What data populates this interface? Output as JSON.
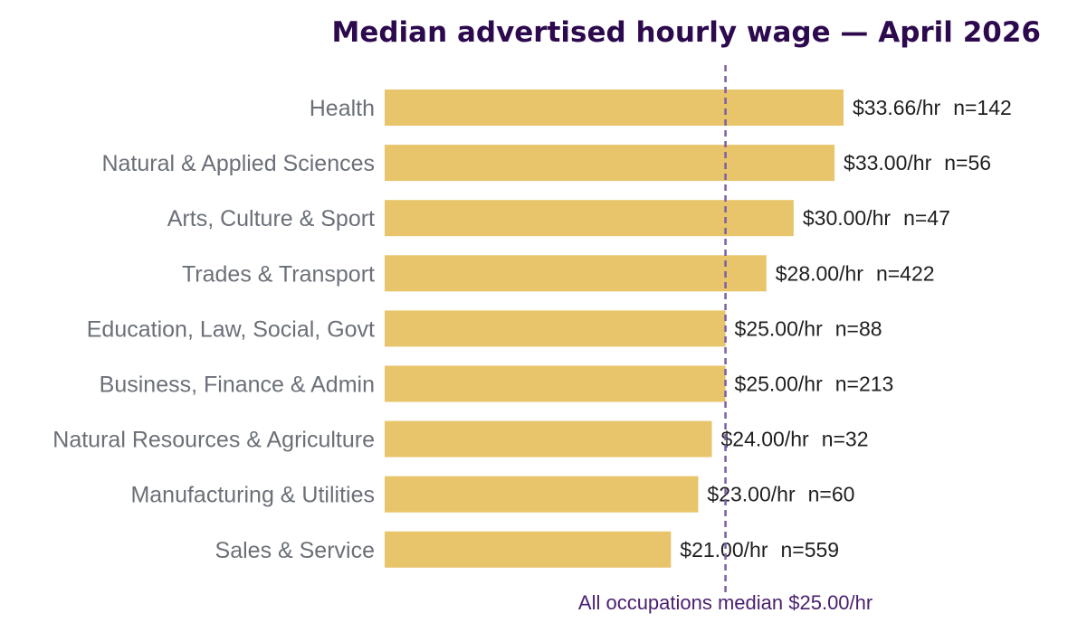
{
  "chart_data": {
    "type": "bar",
    "orientation": "horizontal",
    "title": "Median advertised hourly wage — April 2026",
    "categories": [
      "Health",
      "Natural & Applied Sciences",
      "Arts, Culture & Sport",
      "Trades & Transport",
      "Education, Law, Social, Govt",
      "Business, Finance & Admin",
      "Natural Resources & Agriculture",
      "Manufacturing & Utilities",
      "Sales & Service"
    ],
    "values": [
      33.66,
      33.0,
      30.0,
      28.0,
      25.0,
      25.0,
      24.0,
      23.0,
      21.0
    ],
    "value_labels": [
      "$33.66/hr",
      "$33.00/hr",
      "$30.00/hr",
      "$28.00/hr",
      "$25.00/hr",
      "$25.00/hr",
      "$24.00/hr",
      "$23.00/hr",
      "$21.00/hr"
    ],
    "counts": [
      "n=142",
      "n=56",
      "n=47",
      "n=422",
      "n=88",
      "n=213",
      "n=32",
      "n=60",
      "n=559"
    ],
    "xlim": [
      0,
      33.66
    ],
    "reference_line": {
      "value": 25.0,
      "label": "All occupations median $25.00/hr",
      "style": "dashed"
    },
    "grid": false,
    "legend": "none",
    "colors": {
      "bar": "#e8c46a",
      "reference": "#7b5ea7",
      "title": "#2d0a4e",
      "category_text": "#6b7078",
      "label_text": "#1f1f1f",
      "note_text": "#4a1f6e"
    }
  }
}
